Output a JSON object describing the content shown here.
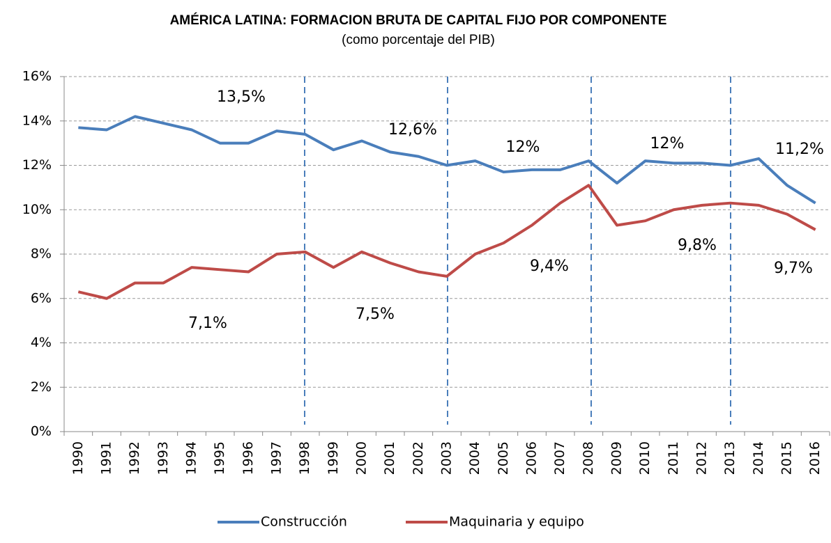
{
  "chart_data": {
    "type": "line",
    "title": "AMÉRICA LATINA: FORMACION BRUTA DE CAPITAL FIJO POR COMPONENTE",
    "subtitle": "(como porcentaje del PIB)",
    "categories": [
      "1990",
      "1991",
      "1992",
      "1993",
      "1994",
      "1995",
      "1996",
      "1997",
      "1998",
      "1999",
      "2000",
      "2001",
      "2002",
      "2003",
      "2004",
      "2005",
      "2006",
      "2007",
      "2008",
      "2009",
      "2010",
      "2011",
      "2012",
      "2013",
      "2014",
      "2015",
      "2016"
    ],
    "series": [
      {
        "name": "Construcción",
        "color": "#4a7ebb",
        "values": [
          13.7,
          13.6,
          14.2,
          13.9,
          13.6,
          13.0,
          13.0,
          13.55,
          13.4,
          12.7,
          13.1,
          12.6,
          12.4,
          12.0,
          12.2,
          11.7,
          11.8,
          11.8,
          12.2,
          11.2,
          12.2,
          12.1,
          12.1,
          12.0,
          12.3,
          11.1,
          10.3
        ]
      },
      {
        "name": "Maquinaria y equipo",
        "color": "#be4b48",
        "values": [
          6.3,
          6.0,
          6.7,
          6.7,
          7.4,
          7.3,
          7.2,
          8.0,
          8.1,
          7.4,
          8.1,
          7.6,
          7.2,
          7.0,
          8.0,
          8.5,
          9.3,
          10.3,
          11.1,
          9.3,
          9.5,
          10.0,
          10.2,
          10.3,
          10.2,
          9.8,
          9.1
        ]
      }
    ],
    "ylim": [
      0,
      16
    ],
    "yticks": [
      {
        "value": 0,
        "label": "0%"
      },
      {
        "value": 2,
        "label": "2%"
      },
      {
        "value": 4,
        "label": "4%"
      },
      {
        "value": 6,
        "label": "6%"
      },
      {
        "value": 8,
        "label": "8%"
      },
      {
        "value": 10,
        "label": "10%"
      },
      {
        "value": 12,
        "label": "12%"
      },
      {
        "value": 14,
        "label": "14%"
      },
      {
        "value": 16,
        "label": "16%"
      }
    ],
    "grid": true,
    "legend": "bottom",
    "annotations": [
      "13,5%",
      "12,6%",
      "12%",
      "12%",
      "11,2%",
      "7,1%",
      "7,5%",
      "9,4%",
      "9,8%",
      "9,7%"
    ]
  }
}
